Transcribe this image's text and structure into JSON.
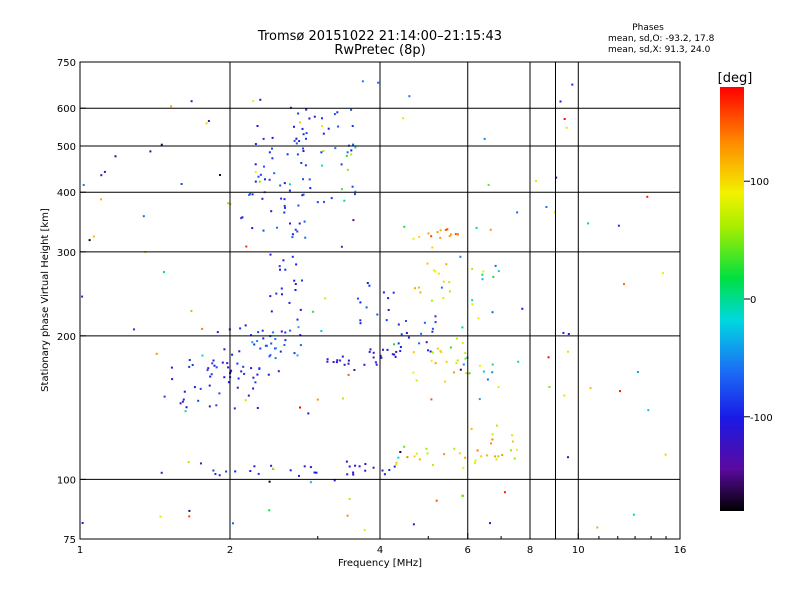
{
  "chart_data": {
    "type": "scatter",
    "title": "Tromsø 20151022 21:14:00–21:15:43",
    "subtitle": "RwPretec (8p)",
    "xlabel": "Frequency [MHz]",
    "ylabel": "Stationary phase Virtual Height [km]",
    "x_scale": "log",
    "y_scale": "log",
    "xlim": [
      1,
      16
    ],
    "ylim": [
      75,
      750
    ],
    "x_ticks": [
      1,
      2,
      4,
      6,
      8,
      10,
      16
    ],
    "x_tick_labels": [
      "1",
      "2",
      "4",
      "6",
      "8",
      "10",
      "16"
    ],
    "x_grid": [
      2,
      4,
      6,
      8,
      9,
      10
    ],
    "y_ticks": [
      75,
      100,
      200,
      300,
      400,
      500,
      600,
      750
    ],
    "y_tick_labels": [
      "75",
      "100",
      "200",
      "300",
      "400",
      "500",
      "600",
      "750"
    ],
    "y_grid": [
      100,
      200,
      300,
      400,
      500,
      600
    ],
    "grid": true,
    "legend": {
      "heading": "Phases",
      "lines": [
        "mean, sd,O: -93.2, 17.8",
        "mean, sd,X:  91.3, 24.0"
      ]
    },
    "colorbar": {
      "label": "[deg]",
      "range": [
        -180,
        180
      ],
      "ticks": [
        100,
        0,
        -100
      ],
      "tick_labels": [
        "100",
        "0",
        "-100"
      ]
    },
    "clusters": [
      {
        "x": [
          1.45,
          4.3
        ],
        "y": [
          101,
          109
        ],
        "phase": [
          -125,
          -80
        ],
        "density": 0.9
      },
      {
        "x": [
          4.3,
          6.8
        ],
        "y": [
          104,
          118
        ],
        "phase": [
          30,
          140
        ],
        "density": 0.5
      },
      {
        "x": [
          6.4,
          7.8
        ],
        "y": [
          110,
          130
        ],
        "phase": [
          40,
          140
        ],
        "density": 0.45
      },
      {
        "x": [
          1.45,
          2.3
        ],
        "y": [
          140,
          180
        ],
        "phase": [
          -125,
          -75
        ],
        "density": 0.85
      },
      {
        "x": [
          1.8,
          2.6
        ],
        "y": [
          165,
          215
        ],
        "phase": [
          -120,
          -75
        ],
        "density": 0.8
      },
      {
        "x": [
          2.2,
          2.8
        ],
        "y": [
          175,
          210
        ],
        "phase": [
          -90,
          -30
        ],
        "density": 0.5
      },
      {
        "x": [
          2.4,
          2.8
        ],
        "y": [
          215,
          300
        ],
        "phase": [
          -115,
          -80
        ],
        "density": 0.6
      },
      {
        "x": [
          2.1,
          2.9
        ],
        "y": [
          320,
          440
        ],
        "phase": [
          -115,
          -60
        ],
        "density": 0.95
      },
      {
        "x": [
          2.2,
          2.9
        ],
        "y": [
          450,
          560
        ],
        "phase": [
          -110,
          -70
        ],
        "density": 0.4
      },
      {
        "x": [
          2.6,
          3.6
        ],
        "y": [
          480,
          620
        ],
        "phase": [
          -110,
          -70
        ],
        "density": 0.45
      },
      {
        "x": [
          3.0,
          3.8
        ],
        "y": [
          380,
          520
        ],
        "phase": [
          -90,
          80
        ],
        "density": 0.35
      },
      {
        "x": [
          3.1,
          4.1
        ],
        "y": [
          172,
          182
        ],
        "phase": [
          -130,
          -90
        ],
        "density": 0.8
      },
      {
        "x": [
          3.8,
          4.6
        ],
        "y": [
          178,
          190
        ],
        "phase": [
          -140,
          -90
        ],
        "density": 0.7
      },
      {
        "x": [
          4.3,
          5.2
        ],
        "y": [
          185,
          215
        ],
        "phase": [
          -120,
          -60
        ],
        "density": 0.5
      },
      {
        "x": [
          4.6,
          6.0
        ],
        "y": [
          160,
          200
        ],
        "phase": [
          60,
          130
        ],
        "density": 0.45
      },
      {
        "x": [
          4.6,
          5.6
        ],
        "y": [
          215,
          330
        ],
        "phase": [
          60,
          130
        ],
        "density": 0.25
      },
      {
        "x": [
          5.0,
          5.8
        ],
        "y": [
          320,
          335
        ],
        "phase": [
          120,
          170
        ],
        "density": 0.4
      },
      {
        "x": [
          5.8,
          7.0
        ],
        "y": [
          120,
          300
        ],
        "phase": [
          -80,
          100
        ],
        "density": 0.25
      },
      {
        "x": [
          3.6,
          4.3
        ],
        "y": [
          210,
          260
        ],
        "phase": [
          -110,
          -70
        ],
        "density": 0.25
      }
    ]
  }
}
